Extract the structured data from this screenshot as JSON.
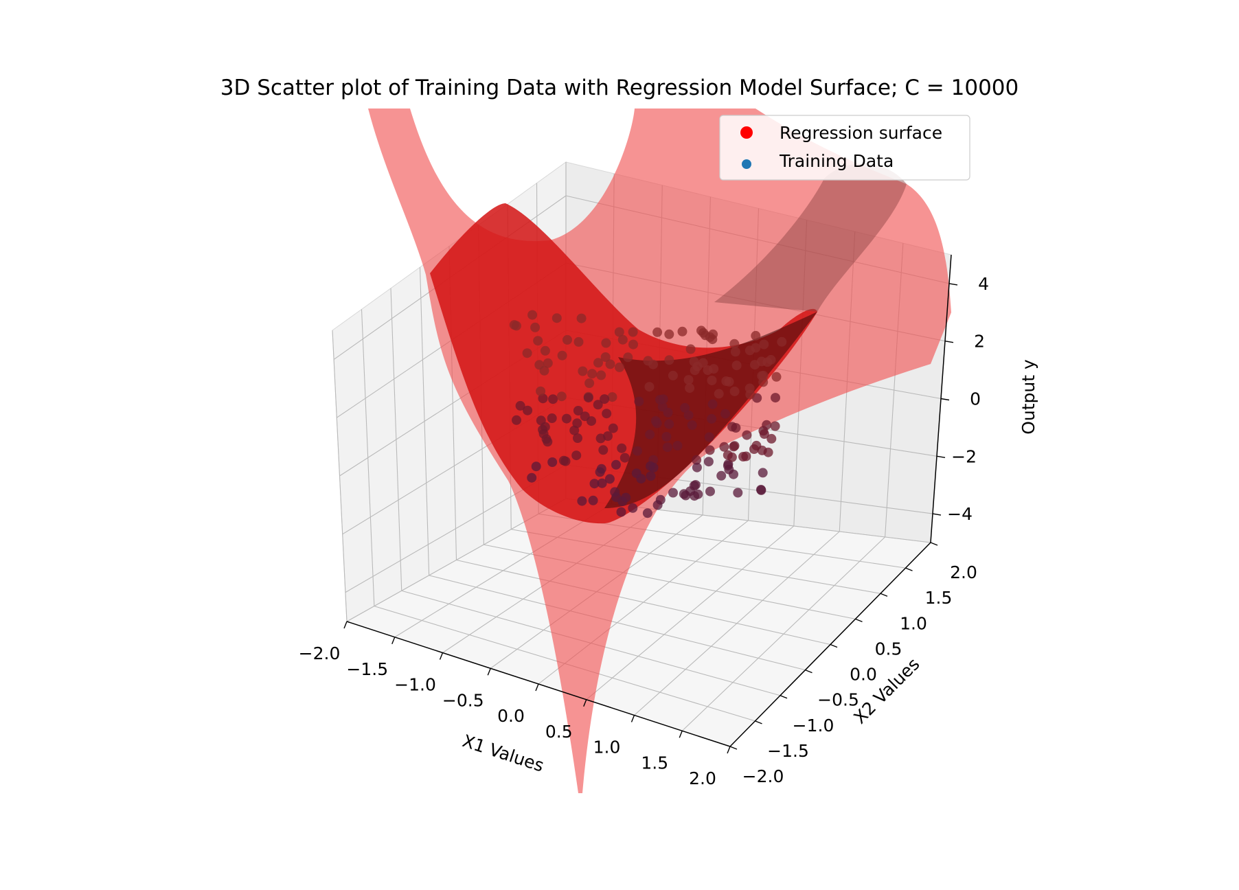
{
  "chart_data": {
    "type": "scatter",
    "title": "3D Scatter plot of Training Data with Regression Model Surface; C = 10000",
    "xlabel": "X1 Values",
    "ylabel": "X2 Values",
    "zlabel": "Output y",
    "xlim": [
      -2.0,
      2.0
    ],
    "ylim": [
      -2.0,
      2.0
    ],
    "zlim": [
      -5,
      5
    ],
    "x_ticks": [
      "−2.0",
      "−1.5",
      "−1.0",
      "−0.5",
      "0.0",
      "0.5",
      "1.0",
      "1.5",
      "2.0"
    ],
    "y_ticks": [
      "−2.0",
      "−1.5",
      "−1.0",
      "−0.5",
      "0.0",
      "0.5",
      "1.0",
      "1.5",
      "2.0"
    ],
    "z_ticks": [
      "−4",
      "−2",
      "0",
      "2",
      "4"
    ],
    "x_tick_values": [
      -2.0,
      -1.5,
      -1.0,
      -0.5,
      0.0,
      0.5,
      1.0,
      1.5,
      2.0
    ],
    "y_tick_values": [
      -2.0,
      -1.5,
      -1.0,
      -0.5,
      0.0,
      0.5,
      1.0,
      1.5,
      2.0
    ],
    "z_tick_values": [
      -4,
      -2,
      0,
      2,
      4
    ],
    "grid": true,
    "legend_position": "top-right",
    "series": [
      {
        "name": "Regression surface",
        "kind": "surface",
        "color": "#ff0000"
      },
      {
        "name": "Training Data",
        "kind": "scatter",
        "color": "#1f77b4",
        "n_points": 200
      }
    ]
  }
}
